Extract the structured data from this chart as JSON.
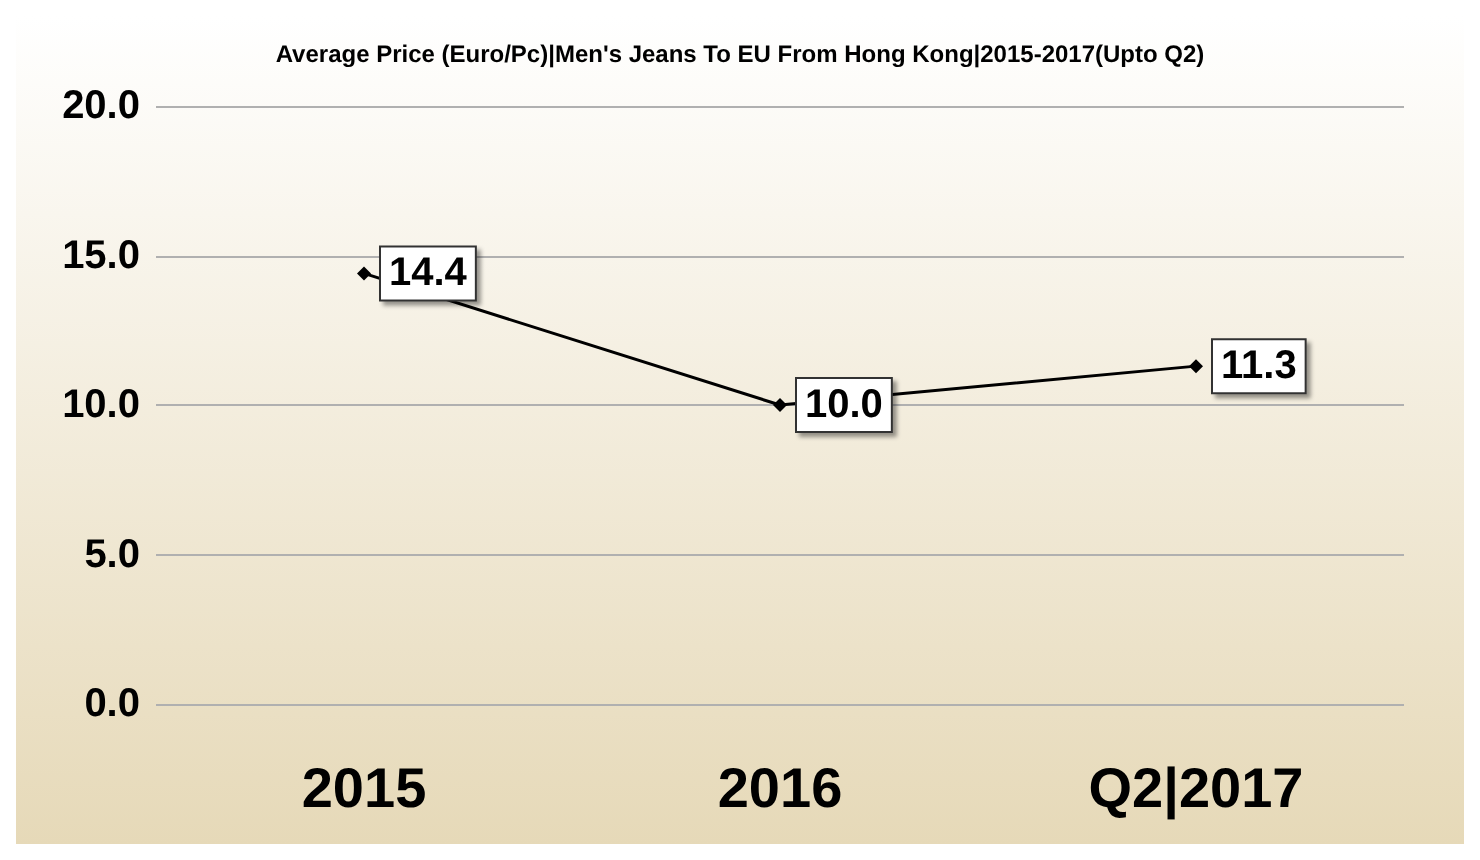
{
  "chart_data": {
    "type": "line",
    "title": "Average Price (Euro/Pc)|Men's Jeans To EU From Hong Kong|2015-2017(Upto Q2)",
    "categories": [
      "2015",
      "2016",
      "Q2|2017"
    ],
    "series": [
      {
        "color": "#000000",
        "values": [
          14.4,
          10.0,
          11.3
        ],
        "value_labels": [
          "14.4",
          "10.0",
          "11.3"
        ]
      }
    ],
    "ylim": [
      0,
      20
    ],
    "yticks": [
      {
        "value": 0,
        "label": "0.0"
      },
      {
        "value": 5,
        "label": "5.0"
      },
      {
        "value": 10,
        "label": "10.0"
      },
      {
        "value": 15,
        "label": "15.0"
      },
      {
        "value": 20,
        "label": "20.0"
      }
    ],
    "grid": "y",
    "marker": "diamond"
  }
}
